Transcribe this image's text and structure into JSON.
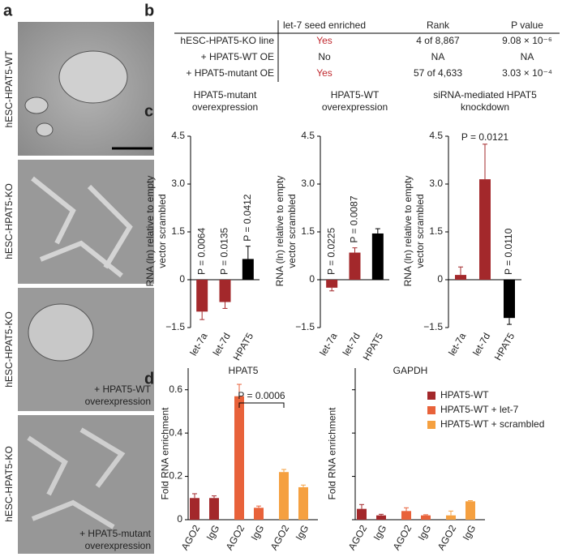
{
  "panel_labels": [
    "a",
    "b",
    "c",
    "d"
  ],
  "images": [
    {
      "label": "hESC-HPAT5-WT"
    },
    {
      "label": "hESC-HPAT5-KO"
    },
    {
      "label": "hESC-HPAT5-KO",
      "caption": "+ HPAT5-WT overexpression"
    },
    {
      "label": "hESC-HPAT5-KO",
      "caption": "+ HPAT5-mutant overexpression"
    }
  ],
  "table": {
    "header": [
      "let-7 seed enriched",
      "Rank",
      "P value"
    ],
    "rows": [
      [
        "hESC-HPAT5-KO line",
        "Yes",
        "4 of 8,867",
        "9.08 × 10⁻⁶"
      ],
      [
        "+ HPAT5-WT OE",
        "No",
        "NA",
        "NA"
      ],
      [
        "+ HPAT5-mutant OE",
        "Yes",
        "57 of 4,633",
        "3.03 × 10⁻⁴"
      ]
    ]
  },
  "chart_data": [
    {
      "type": "bar",
      "title": "HPAT5-mutant overexpression",
      "ylabel": "RNA (ln) relative to empty vector scrambled",
      "categories": [
        "let-7a",
        "let-7d",
        "HPAT5"
      ],
      "values": [
        -1.0,
        -0.7,
        0.65
      ],
      "errors": [
        0.25,
        0.2,
        0.4
      ],
      "colors": [
        "#a3282b",
        "#a3282b",
        "#000000"
      ],
      "annotations": [
        "P = 0.0064",
        "P = 0.0135",
        "P = 0.0412"
      ],
      "ylim": [
        -1.5,
        4.5
      ],
      "yticks": [
        {
          "value": -1.5,
          "label": "−1.5"
        },
        0,
        1.5,
        {
          "value": 3,
          "label": "3.0"
        },
        4.5
      ]
    },
    {
      "type": "bar",
      "title": "HPAT5-WT overexpression",
      "ylabel": "RNA (ln) relative to empty vector scrambled",
      "categories": [
        "let-7a",
        "let-7d",
        "HPAT5"
      ],
      "values": [
        -0.25,
        0.85,
        1.45
      ],
      "errors": [
        0.1,
        0.15,
        0.15
      ],
      "colors": [
        "#a3282b",
        "#a3282b",
        "#000000"
      ],
      "annotations": [
        "P = 0.0225",
        "P = 0.0087",
        null
      ],
      "ylim": [
        -1.5,
        4.5
      ],
      "yticks": [
        {
          "value": -1.5,
          "label": "−1.5"
        },
        0,
        1.5,
        {
          "value": 3,
          "label": "3.0"
        },
        4.5
      ]
    },
    {
      "type": "bar",
      "title": "siRNA-mediated HPAT5 knockdown",
      "ylabel": "RNA (ln) relative to empty vector scrambled",
      "categories": [
        "let-7a",
        "let-7d",
        "HPAT5"
      ],
      "values": [
        0.15,
        3.15,
        -1.2
      ],
      "errors": [
        0.25,
        1.1,
        0.2
      ],
      "colors": [
        "#a3282b",
        "#a3282b",
        "#000000"
      ],
      "annotations": [
        null,
        "P = 0.0121",
        "P = 0.0110"
      ],
      "ylim": [
        -1.5,
        4.5
      ],
      "yticks": [
        {
          "value": -1.5,
          "label": "−1.5"
        },
        0,
        1.5,
        {
          "value": 3,
          "label": "3.0"
        },
        4.5
      ]
    },
    {
      "type": "grouped_bar",
      "title": "HPAT5",
      "ylabel": "Fold RNA enrichment",
      "categories": [
        "AGO2",
        "IgG"
      ],
      "series": [
        {
          "color": "#a3282b",
          "values": [
            0.1,
            0.1
          ],
          "errors": [
            0.02,
            0.01
          ]
        },
        {
          "color": "#e8623a",
          "values": [
            0.57,
            0.055
          ],
          "errors": [
            0.055,
            0.008
          ]
        },
        {
          "color": "#f5a040",
          "values": [
            0.22,
            0.15
          ],
          "errors": [
            0.012,
            0.01
          ]
        }
      ],
      "annotation": "P = 0.0006",
      "ylim": [
        0,
        0.7
      ],
      "yticks": [
        0,
        0.2,
        0.4,
        0.6
      ],
      "tick_labels": true
    },
    {
      "type": "grouped_bar",
      "title": "GAPDH",
      "ylabel": "Fold RNA enrichment",
      "categories": [
        "AGO2",
        "IgG"
      ],
      "series": [
        {
          "name": "HPAT5-WT",
          "color": "#a3282b",
          "values": [
            0.05,
            0.02
          ],
          "errors": [
            0.02,
            0.005
          ]
        },
        {
          "name": "HPAT5-WT + let-7",
          "color": "#e8623a",
          "values": [
            0.04,
            0.02
          ],
          "errors": [
            0.015,
            0.003
          ]
        },
        {
          "name": "HPAT5-WT + scrambled",
          "color": "#f5a040",
          "values": [
            0.02,
            0.085
          ],
          "errors": [
            0.02,
            0.003
          ]
        }
      ],
      "ylim": [
        0,
        0.7
      ],
      "yticks": [
        0,
        0.2,
        0.4,
        0.6
      ],
      "tick_labels": false,
      "legend": "upper right"
    }
  ]
}
